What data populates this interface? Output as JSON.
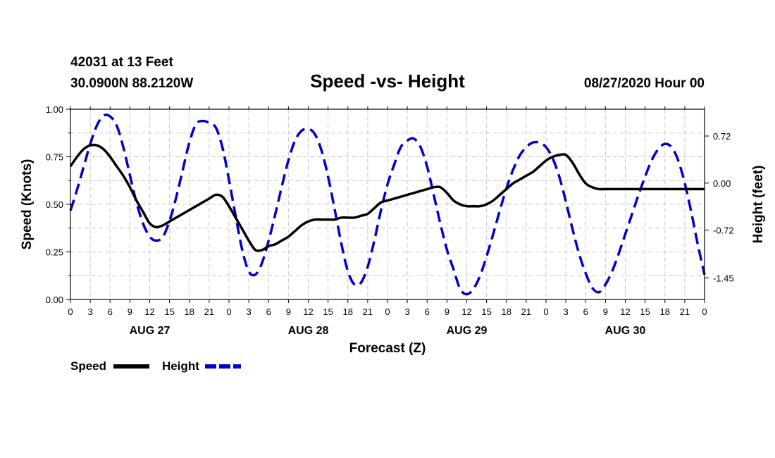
{
  "header": {
    "station": "42031 at 13 Feet",
    "location": "30.0900N 88.2120W",
    "title": "Speed -vs- Height",
    "datetime": "08/27/2020 Hour 00"
  },
  "chart_data": {
    "type": "line",
    "title": "Speed -vs- Height",
    "xlabel": "Forecast (Z)",
    "ylabel_left": "Speed (Knots)",
    "ylabel_right": "Height (feet)",
    "x_hours_range": [
      0,
      96
    ],
    "ylim_left": [
      0,
      1
    ],
    "ylim_right": [
      -1.78,
      1.13
    ],
    "grid": true,
    "left_ticks": [
      {
        "value": 0,
        "label": "0.00"
      },
      {
        "value": 0.25,
        "label": "0.25"
      },
      {
        "value": 0.5,
        "label": "0.50"
      },
      {
        "value": 0.75,
        "label": "0.75"
      },
      {
        "value": 1.0,
        "label": "1.00"
      }
    ],
    "right_ticks": [
      {
        "value": 0.72,
        "label": "0.72"
      },
      {
        "value": 0.0,
        "label": "0.00"
      },
      {
        "value": -0.72,
        "label": "-0.72"
      },
      {
        "value": -1.45,
        "label": "-1.45"
      }
    ],
    "x_tick_labels": [
      "0",
      "3",
      "6",
      "9",
      "12",
      "15",
      "18",
      "21",
      "0",
      "3",
      "6",
      "9",
      "12",
      "15",
      "18",
      "21",
      "0",
      "3",
      "6",
      "9",
      "12",
      "15",
      "18",
      "21",
      "0",
      "3",
      "6",
      "9",
      "12",
      "15",
      "18",
      "21",
      "0"
    ],
    "day_labels": [
      {
        "hour": 12,
        "label": "AUG 27"
      },
      {
        "hour": 36,
        "label": "AUG 28"
      },
      {
        "hour": 60,
        "label": "AUG 29"
      },
      {
        "hour": 84,
        "label": "AUG 30"
      }
    ],
    "series": [
      {
        "name": "Speed",
        "axis": "left",
        "color": "#000000",
        "style": "solid",
        "x": [
          0,
          1,
          2,
          3,
          4,
          5,
          6,
          7,
          8,
          9,
          10,
          11,
          12,
          13,
          14,
          15,
          16,
          17,
          18,
          19,
          20,
          21,
          22,
          23,
          24,
          25,
          26,
          27,
          28,
          29,
          30,
          31,
          32,
          33,
          34,
          35,
          36,
          37,
          38,
          39,
          40,
          41,
          42,
          43,
          44,
          45,
          46,
          47,
          48,
          49,
          50,
          51,
          52,
          53,
          54,
          55,
          56,
          57,
          58,
          59,
          60,
          61,
          62,
          63,
          64,
          65,
          66,
          67,
          68,
          69,
          70,
          71,
          72,
          73,
          74,
          75,
          76,
          77,
          78,
          79,
          80,
          81,
          82,
          83,
          84,
          85,
          86,
          87,
          88,
          89,
          90,
          91,
          92,
          93,
          94,
          95,
          96
        ],
        "values": [
          0.7,
          0.75,
          0.79,
          0.81,
          0.81,
          0.79,
          0.75,
          0.7,
          0.65,
          0.59,
          0.52,
          0.46,
          0.4,
          0.38,
          0.39,
          0.41,
          0.43,
          0.45,
          0.47,
          0.49,
          0.51,
          0.53,
          0.55,
          0.54,
          0.49,
          0.43,
          0.37,
          0.31,
          0.26,
          0.26,
          0.28,
          0.29,
          0.31,
          0.33,
          0.36,
          0.39,
          0.41,
          0.42,
          0.42,
          0.42,
          0.42,
          0.43,
          0.43,
          0.43,
          0.44,
          0.45,
          0.48,
          0.51,
          0.52,
          0.53,
          0.54,
          0.55,
          0.56,
          0.57,
          0.58,
          0.59,
          0.59,
          0.56,
          0.52,
          0.5,
          0.49,
          0.49,
          0.49,
          0.5,
          0.52,
          0.55,
          0.58,
          0.61,
          0.63,
          0.65,
          0.67,
          0.7,
          0.73,
          0.75,
          0.76,
          0.76,
          0.72,
          0.66,
          0.61,
          0.59,
          0.58,
          0.58,
          0.58,
          0.58,
          0.58,
          0.58,
          0.58,
          0.58,
          0.58,
          0.58,
          0.58,
          0.58,
          0.58,
          0.58,
          0.58,
          0.58,
          0.58
        ]
      },
      {
        "name": "Height",
        "axis": "right",
        "color": "#0000cc",
        "style": "dashed",
        "x": [
          0,
          1,
          2,
          3,
          4,
          5,
          6,
          7,
          8,
          9,
          10,
          11,
          12,
          13,
          14,
          15,
          16,
          17,
          18,
          19,
          20,
          21,
          22,
          23,
          24,
          25,
          26,
          27,
          28,
          29,
          30,
          31,
          32,
          33,
          34,
          35,
          36,
          37,
          38,
          39,
          40,
          41,
          42,
          43,
          44,
          45,
          46,
          47,
          48,
          49,
          50,
          51,
          52,
          53,
          54,
          55,
          56,
          57,
          58,
          59,
          60,
          61,
          62,
          63,
          64,
          65,
          66,
          67,
          68,
          69,
          70,
          71,
          72,
          73,
          74,
          75,
          76,
          77,
          78,
          79,
          80,
          81,
          82,
          83,
          84,
          85,
          86,
          87,
          88,
          89,
          90,
          91,
          92,
          93,
          94,
          95,
          96
        ],
        "values": [
          -0.42,
          -0.1,
          0.25,
          0.6,
          0.88,
          1.03,
          1.02,
          0.88,
          0.55,
          0.12,
          -0.3,
          -0.62,
          -0.82,
          -0.88,
          -0.82,
          -0.58,
          -0.22,
          0.2,
          0.62,
          0.9,
          0.95,
          0.92,
          0.85,
          0.55,
          0.05,
          -0.5,
          -1.02,
          -1.35,
          -1.4,
          -1.22,
          -0.88,
          -0.48,
          -0.05,
          0.35,
          0.65,
          0.8,
          0.83,
          0.75,
          0.5,
          0.1,
          -0.4,
          -0.92,
          -1.35,
          -1.55,
          -1.52,
          -1.28,
          -0.88,
          -0.42,
          -0.02,
          0.28,
          0.55,
          0.65,
          0.68,
          0.55,
          0.25,
          -0.18,
          -0.62,
          -1.02,
          -1.32,
          -1.62,
          -1.7,
          -1.62,
          -1.42,
          -1.12,
          -0.78,
          -0.42,
          -0.08,
          0.2,
          0.42,
          0.55,
          0.62,
          0.62,
          0.55,
          0.38,
          0.1,
          -0.28,
          -0.7,
          -1.08,
          -1.38,
          -1.6,
          -1.67,
          -1.55,
          -1.35,
          -1.08,
          -0.78,
          -0.48,
          -0.18,
          0.1,
          0.35,
          0.52,
          0.6,
          0.55,
          0.35,
          0.0,
          -0.45,
          -0.95,
          -1.4
        ]
      }
    ]
  },
  "legend": {
    "speed_label": "Speed",
    "height_label": "Height"
  }
}
